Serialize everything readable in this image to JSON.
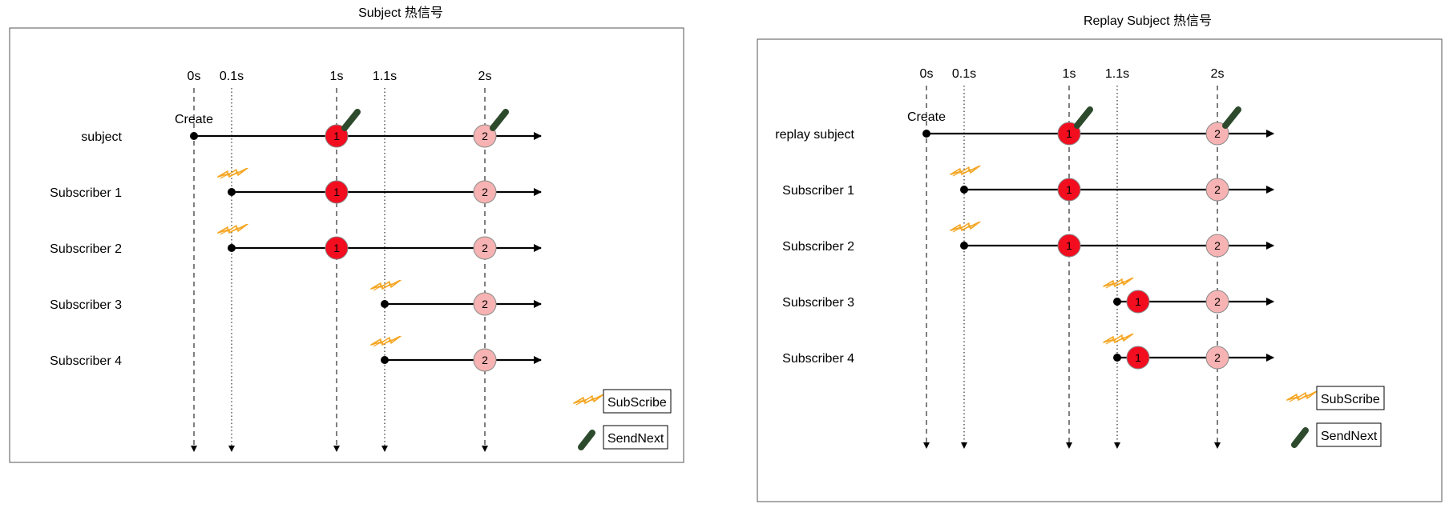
{
  "diagrams": [
    {
      "title": "Subject 热信号",
      "create_label": "Create",
      "ticks": [
        {
          "label": "0s",
          "t": 0,
          "style": "dashed"
        },
        {
          "label": "0.1s",
          "t": 0.1,
          "style": "dotted"
        },
        {
          "label": "1s",
          "t": 1,
          "style": "dashed"
        },
        {
          "label": "1.1s",
          "t": 1.1,
          "style": "dotted"
        },
        {
          "label": "2s",
          "t": 2,
          "style": "dashed"
        }
      ],
      "rows": [
        {
          "label": "subject",
          "start": 0,
          "events": [
            {
              "t": 1,
              "v": "1",
              "kind": "new",
              "send_next": true
            },
            {
              "t": 2,
              "v": "2",
              "kind": "later",
              "send_next": true
            }
          ]
        },
        {
          "label": "Subscriber 1",
          "start": 0.1,
          "subscribe": true,
          "events": [
            {
              "t": 1,
              "v": "1",
              "kind": "new"
            },
            {
              "t": 2,
              "v": "2",
              "kind": "later"
            }
          ]
        },
        {
          "label": "Subscriber 2",
          "start": 0.1,
          "subscribe": true,
          "events": [
            {
              "t": 1,
              "v": "1",
              "kind": "new"
            },
            {
              "t": 2,
              "v": "2",
              "kind": "later"
            }
          ]
        },
        {
          "label": "Subscriber 3",
          "start": 1.1,
          "subscribe": true,
          "events": [
            {
              "t": 2,
              "v": "2",
              "kind": "later"
            }
          ]
        },
        {
          "label": "Subscriber 4",
          "start": 1.1,
          "subscribe": true,
          "events": [
            {
              "t": 2,
              "v": "2",
              "kind": "later"
            }
          ]
        }
      ],
      "legend": {
        "subscribe": "SubScribe",
        "send_next": "SendNext"
      }
    },
    {
      "title": "Replay Subject 热信号",
      "create_label": "Create",
      "ticks": [
        {
          "label": "0s",
          "t": 0,
          "style": "dashed"
        },
        {
          "label": "0.1s",
          "t": 0.1,
          "style": "dotted"
        },
        {
          "label": "1s",
          "t": 1,
          "style": "dashed"
        },
        {
          "label": "1.1s",
          "t": 1.1,
          "style": "dotted"
        },
        {
          "label": "2s",
          "t": 2,
          "style": "dashed"
        }
      ],
      "rows": [
        {
          "label": "replay subject",
          "start": 0,
          "events": [
            {
              "t": 1,
              "v": "1",
              "kind": "new",
              "send_next": true
            },
            {
              "t": 2,
              "v": "2",
              "kind": "later",
              "send_next": true
            }
          ]
        },
        {
          "label": "Subscriber 1",
          "start": 0.1,
          "subscribe": true,
          "events": [
            {
              "t": 1,
              "v": "1",
              "kind": "new"
            },
            {
              "t": 2,
              "v": "2",
              "kind": "later"
            }
          ]
        },
        {
          "label": "Subscriber 2",
          "start": 0.1,
          "subscribe": true,
          "events": [
            {
              "t": 1,
              "v": "1",
              "kind": "new"
            },
            {
              "t": 2,
              "v": "2",
              "kind": "later"
            }
          ]
        },
        {
          "label": "Subscriber 3",
          "start": 1.1,
          "subscribe": true,
          "events": [
            {
              "t": 1.1,
              "v": "1",
              "kind": "new",
              "replay": true
            },
            {
              "t": 2,
              "v": "2",
              "kind": "later"
            }
          ]
        },
        {
          "label": "Subscriber 4",
          "start": 1.1,
          "subscribe": true,
          "events": [
            {
              "t": 1.1,
              "v": "1",
              "kind": "new",
              "replay": true
            },
            {
              "t": 2,
              "v": "2",
              "kind": "later"
            }
          ]
        }
      ],
      "legend": {
        "subscribe": "SubScribe",
        "send_next": "SendNext"
      }
    }
  ],
  "colors": {
    "new_value": "#f20d1f",
    "later_value": "#f7b3b3",
    "lightning": "#f5a623",
    "send_next": "#2d4a2d",
    "line": "#000000"
  },
  "icons": {
    "subscribe": "lightning-icon",
    "send_next": "send-next-icon"
  }
}
